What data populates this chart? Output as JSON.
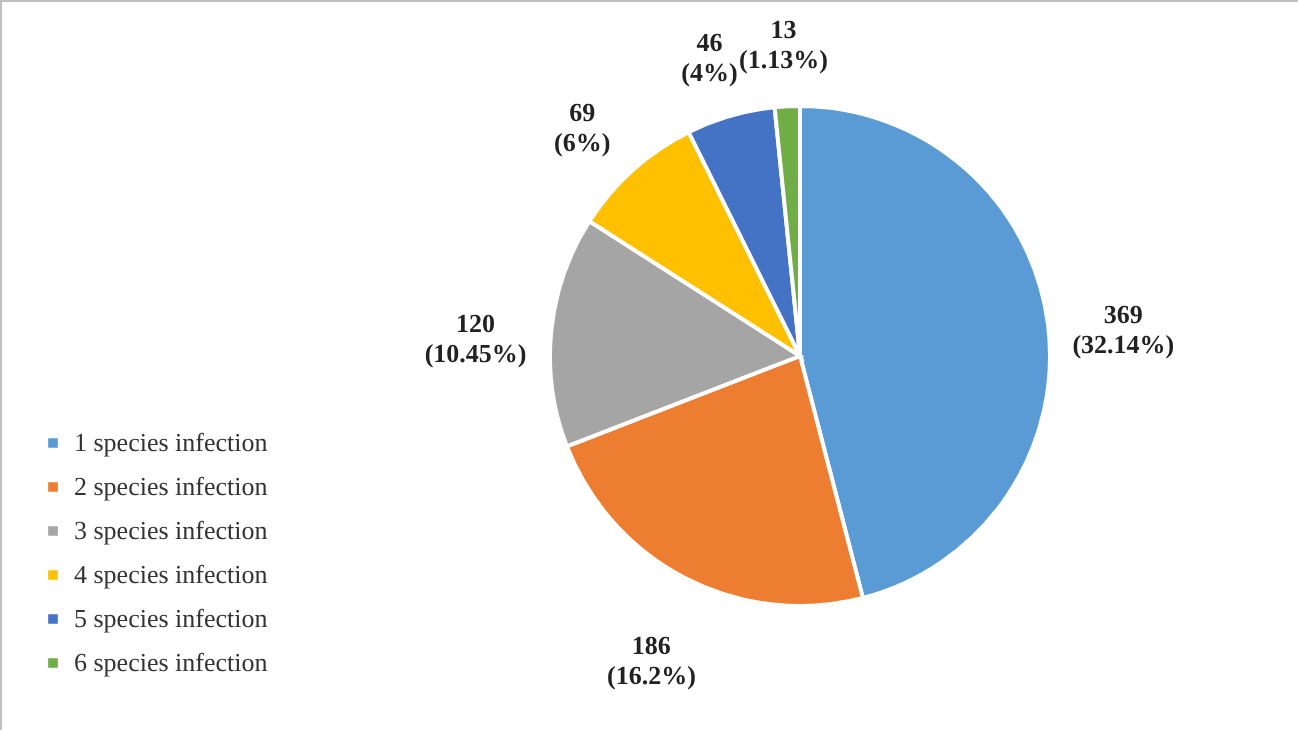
{
  "chart_data": {
    "type": "pie",
    "categories": [
      "1 species infection",
      "2 species infection",
      "3 species infection",
      "4 species infection",
      "5 species infection",
      "6 species infection"
    ],
    "values": [
      369,
      186,
      120,
      69,
      46,
      13
    ],
    "colors": [
      "#5b9bd5",
      "#ed7d31",
      "#a5a5a5",
      "#ffc000",
      "#4472c4",
      "#70ad47"
    ],
    "value_labels": [
      "369\n(32.14%)",
      "186\n(16.2%)",
      "120\n(10.45%)",
      "69\n(6%)",
      "46\n(4%)",
      "13\n(1.13%)"
    ],
    "legend": "bottom left"
  }
}
